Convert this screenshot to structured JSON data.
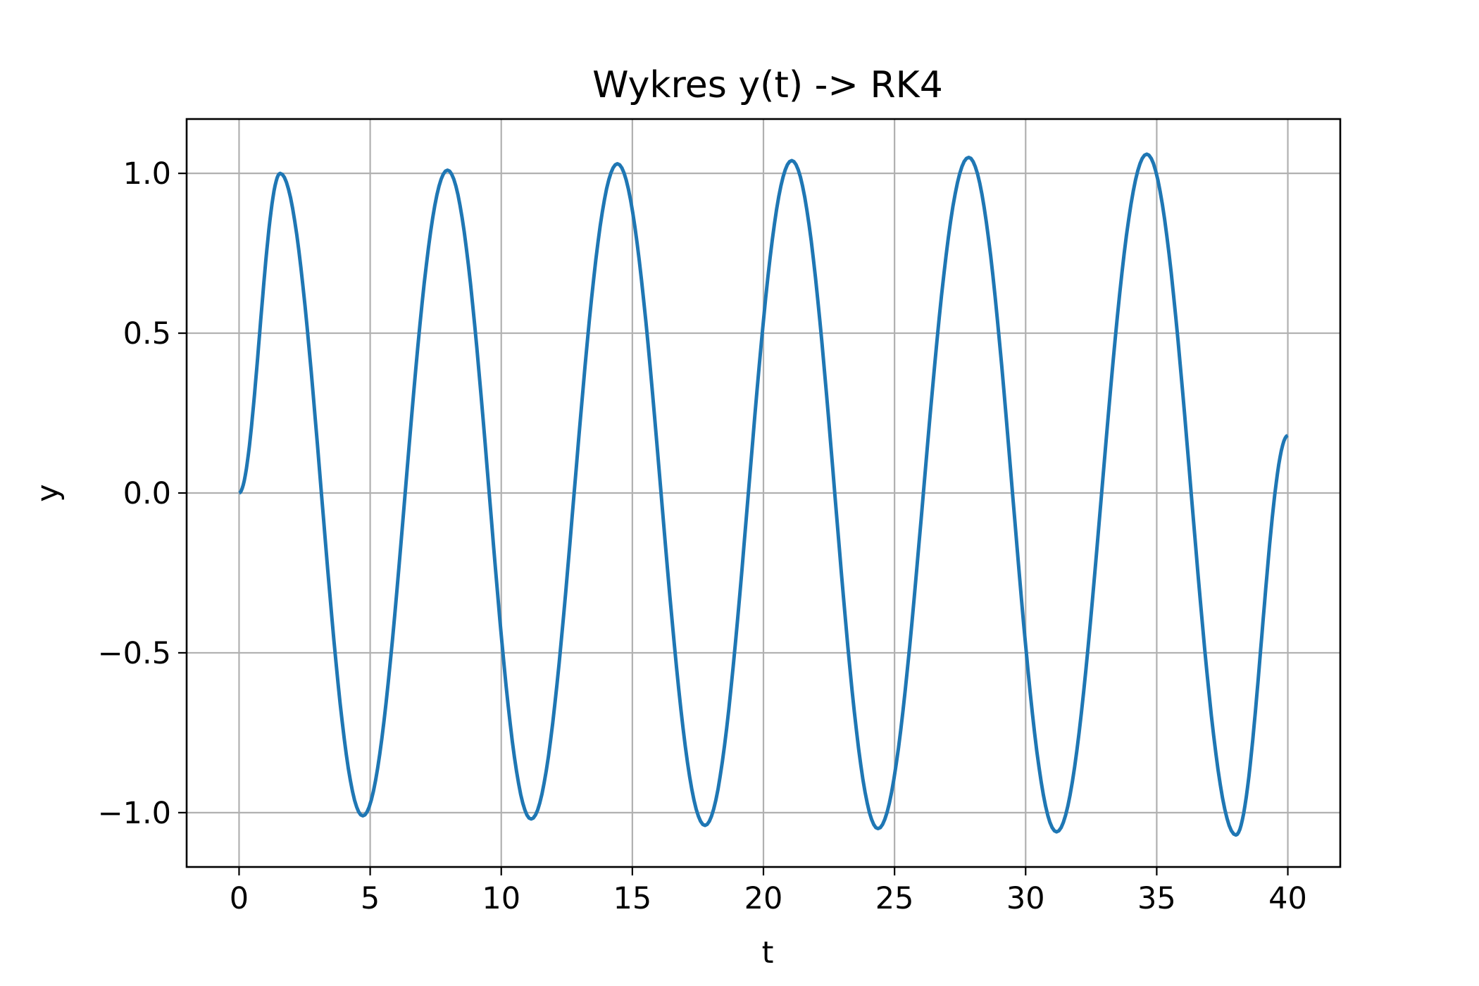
{
  "chart_data": {
    "type": "line",
    "title": "Wykres y(t) -> RK4",
    "xlabel": "t",
    "ylabel": "y",
    "xlim": [
      -2,
      42
    ],
    "ylim": [
      -1.17,
      1.17
    ],
    "xticks": [
      0,
      5,
      10,
      15,
      20,
      25,
      30,
      35,
      40
    ],
    "xtick_labels": [
      "0",
      "5",
      "10",
      "15",
      "20",
      "25",
      "30",
      "35",
      "40"
    ],
    "yticks": [
      -1.0,
      -0.5,
      0.0,
      0.5,
      1.0
    ],
    "ytick_labels": [
      "−1.0",
      "−0.5",
      "0.0",
      "0.5",
      "1.0"
    ],
    "grid": true,
    "legend": "none",
    "series": [
      {
        "color": "#1f77b4",
        "x": [
          0,
          1.57,
          4.72,
          7.95,
          11.14,
          14.43,
          17.77,
          21.08,
          24.37,
          27.83,
          31.18,
          34.62,
          38.02,
          40
        ],
        "y": [
          0.0,
          1.0,
          -1.01,
          1.01,
          -1.02,
          1.03,
          -1.04,
          1.04,
          -1.05,
          1.05,
          -1.06,
          1.06,
          -1.07,
          0.18
        ]
      }
    ]
  }
}
